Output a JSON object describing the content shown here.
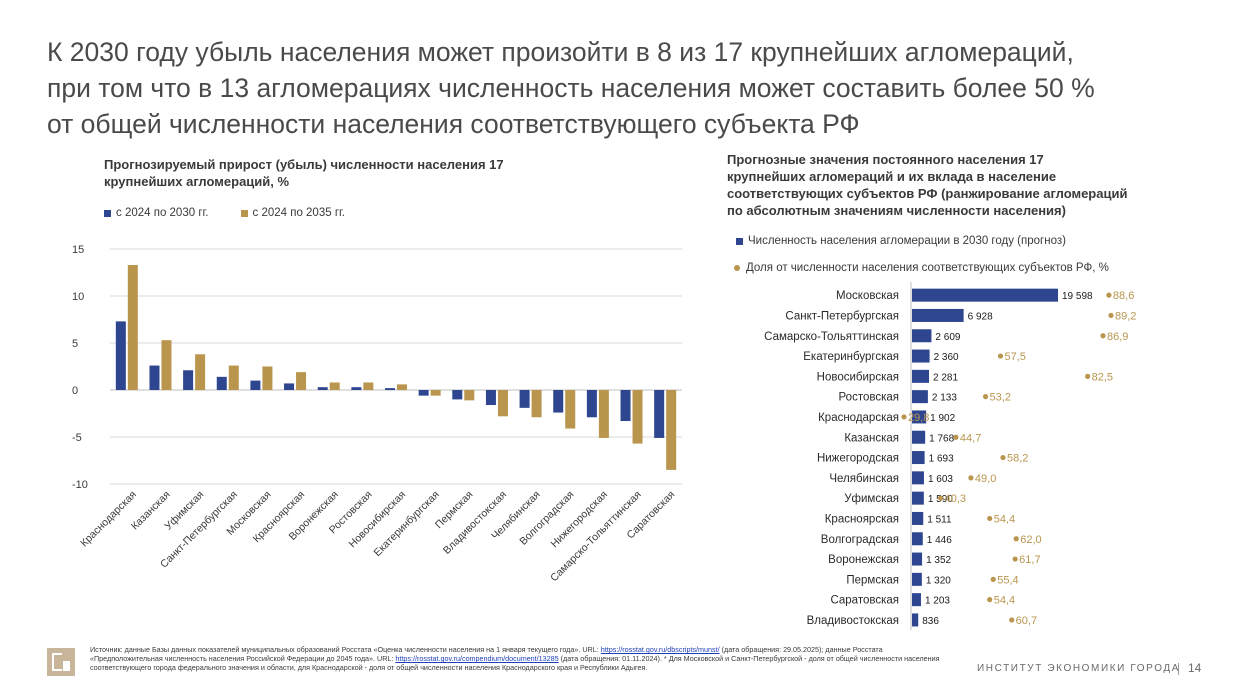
{
  "slide": {
    "title_lines": [
      "К 2030 году убыль населения может произойти в 8 из 17 крупнейших агломераций,",
      "при том что в 13 агломерациях численность населения может составить более 50 %",
      "от общей численности населения соответствующего субъекта РФ"
    ],
    "org_name": "ИНСТИТУТ ЭКОНОМИКИ ГОРОДА",
    "page_number": "14"
  },
  "left": {
    "title_lines": [
      "Прогнозируемый прирост (убыль) численности населения 17",
      "крупнейших агломераций, %"
    ],
    "legend": [
      "с 2024 по 2030 гг.",
      "с 2024 по 2035 гг."
    ]
  },
  "right": {
    "title_lines": [
      "Прогнозные значения постоянного населения 17",
      "крупнейших агломераций и их вклада в население",
      "соответствующих субъектов РФ (ранжирование агломераций",
      "по абсолютным значениям численности населения)"
    ],
    "legend": [
      "Численность населения агломерации в 2030 году (прогноз)",
      "Доля от численности населения соответствующих субъектов РФ, %"
    ]
  },
  "colors": {
    "blue": "#2e4690",
    "gold": "#b9954d",
    "grid": "#d9d9d9"
  },
  "chart_data": [
    {
      "type": "bar",
      "title": "Прогнозируемый прирост (убыль) численности населения 17 крупнейших агломераций, %",
      "categories": [
        "Краснодарская",
        "Казанская",
        "Уфимская",
        "Санкт-Петербургская",
        "Московская",
        "Красноярская",
        "Воронежская",
        "Ростовская",
        "Новосибирская",
        "Екатеринбургская",
        "Пермская",
        "Владивостокская",
        "Челябинская",
        "Волгоградская",
        "Нижегородская",
        "Самарско-Тольяттинская",
        "Саратовская"
      ],
      "series": [
        {
          "name": "с 2024 по 2030 гг.",
          "values": [
            7.3,
            2.6,
            2.1,
            1.4,
            1.0,
            0.7,
            0.3,
            0.3,
            0.2,
            -0.6,
            -1.0,
            -1.6,
            -1.9,
            -2.4,
            -2.9,
            -3.3,
            -5.1
          ]
        },
        {
          "name": "с 2024 по 2035 гг.",
          "values": [
            13.3,
            5.3,
            3.8,
            2.6,
            2.5,
            1.9,
            0.8,
            0.8,
            0.6,
            -0.6,
            -1.1,
            -2.8,
            -2.9,
            -4.1,
            -5.1,
            -5.7,
            -8.5
          ]
        }
      ],
      "ylim": [
        -10,
        15
      ],
      "yticks": [
        "15",
        "10",
        "5",
        "0",
        "-5",
        "-10"
      ],
      "ytick_values": [
        15,
        10,
        5,
        0,
        -5,
        -10
      ]
    },
    {
      "type": "bar",
      "title": "Прогнозные значения постоянного населения 17 крупнейших агломераций и их вклада в население соответствующих субъектов РФ (ранжирование агломераций по абсолютным значениям численности населения)",
      "categories": [
        "Московская",
        "Санкт-Петербургская",
        "Самарско-Тольяттинская",
        "Екатеринбургская",
        "Новосибирская",
        "Ростовская",
        "Краснодарская",
        "Казанская",
        "Нижегородская",
        "Челябинская",
        "Уфимская",
        "Красноярская",
        "Волгоградская",
        "Воронежская",
        "Пермская",
        "Саратовская",
        "Владивостокская"
      ],
      "values": [
        19598,
        6928,
        2609,
        2360,
        2281,
        2133,
        1902,
        1768,
        1693,
        1603,
        1590,
        1511,
        1446,
        1352,
        1320,
        1203,
        836
      ],
      "value_labels": [
        "19 598",
        "6 928",
        "2 609",
        "2 360",
        "2 281",
        "2 133",
        "1 902",
        "1 768",
        "1 693",
        "1 603",
        "1 590",
        "1 511",
        "1 446",
        "1 352",
        "1 320",
        "1 203",
        "836"
      ],
      "share": [
        88.6,
        89.2,
        86.9,
        57.5,
        82.5,
        53.2,
        29.8,
        44.7,
        58.2,
        49.0,
        40.3,
        54.4,
        62.0,
        61.7,
        55.4,
        54.4,
        60.7
      ],
      "share_labels": [
        "88,6",
        "89,2",
        "86,9",
        "57,5",
        "82,5",
        "53,2",
        "29,8",
        "44,7",
        "58,2",
        "49,0",
        "40,3",
        "54,4",
        "62,0",
        "61,7",
        "55,4",
        "54,4",
        "60,7"
      ]
    }
  ],
  "source": {
    "p1": "Источник: данные Базы данных показателей муниципальных образований Росстата «Оценка численности населения на 1 января текущего года». URL: ",
    "link1": "https://rosstat.gov.ru/dbscripts/munst/",
    "p2": " (дата обращения: 29.05.2025); данные Росстата «Предположительная численность населения Российской Федерации до 2045 года». URL: ",
    "link2": "https://rosstat.gov.ru/compendium/document/13285",
    "p3": " (дата обращения: 01.11.2024). * Для Московской и Санкт-Петербургской - доля от общей численности населения соответствующего города федерального значения и области, для Краснодарской - доля от общей численности населения Краснодарского края и Республики Адыгея."
  }
}
